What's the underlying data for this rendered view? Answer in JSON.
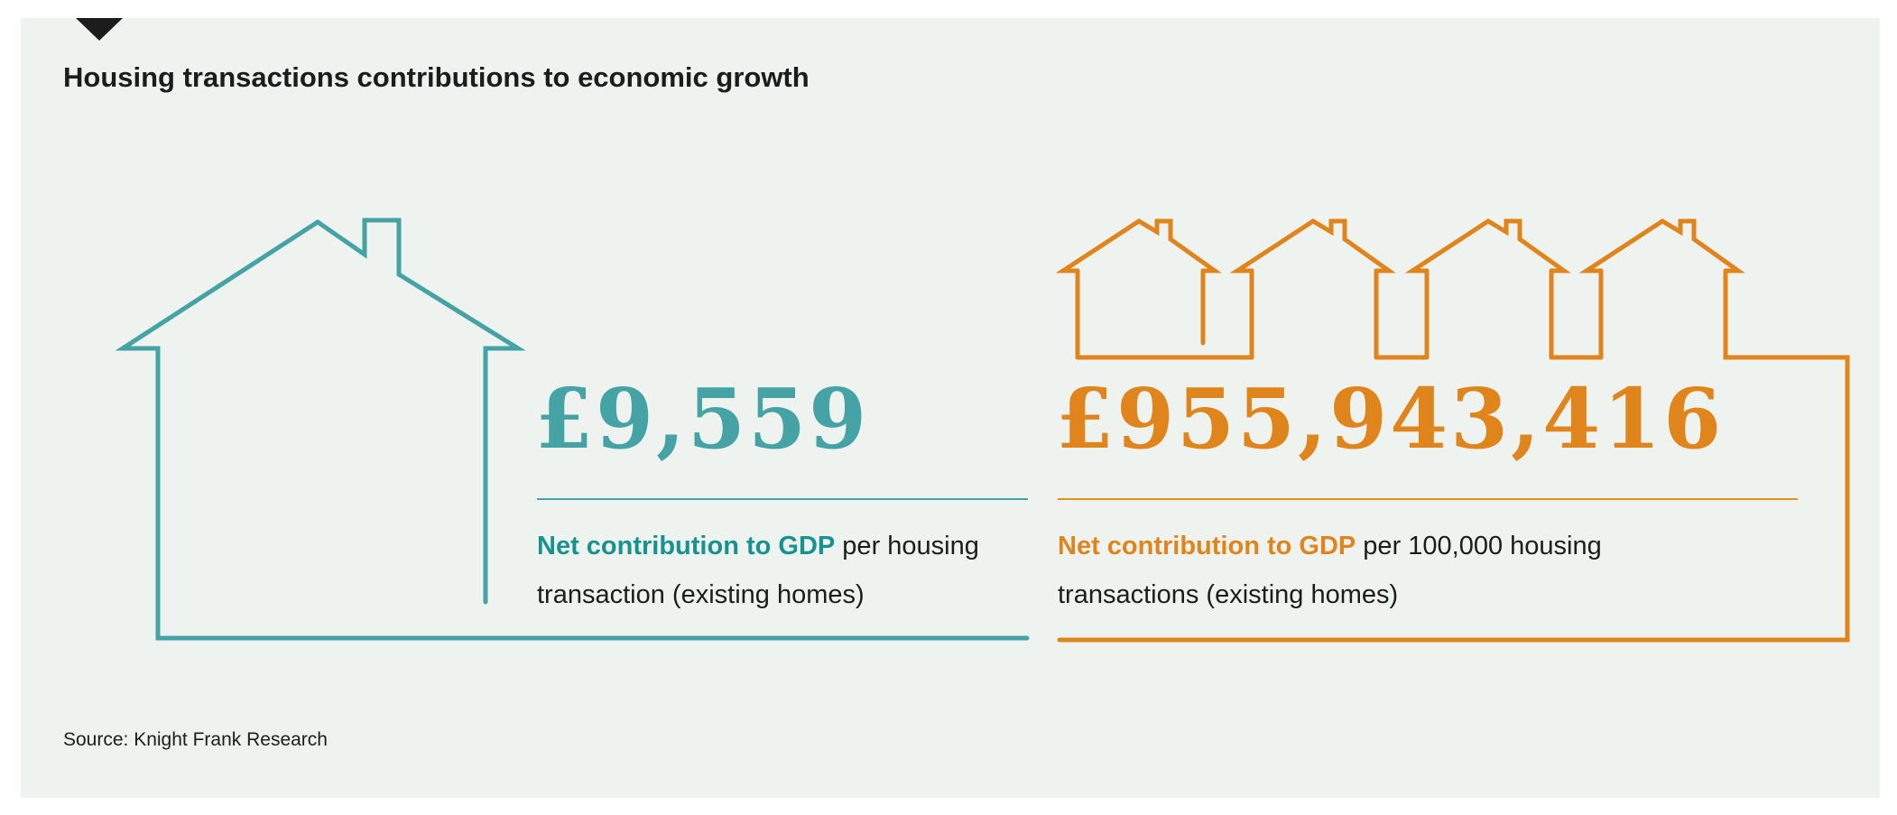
{
  "title": "Housing transactions contributions to economic growth",
  "colors": {
    "teal": "#45a3a6",
    "orange": "#e0841c",
    "background": "#eff3ef"
  },
  "single_home": {
    "icon": "house-outline-icon",
    "value": "£9,559",
    "label_strong": "Net contribution to GDP",
    "label_rest": " per housing transaction (existing homes)"
  },
  "many_homes": {
    "icon": "row-of-houses-icon",
    "value": "£955,943,416",
    "label_strong": "Net contribution to GDP",
    "label_rest": " per 100,000 housing transactions (existing homes)"
  },
  "source": "Source: Knight Frank Research"
}
